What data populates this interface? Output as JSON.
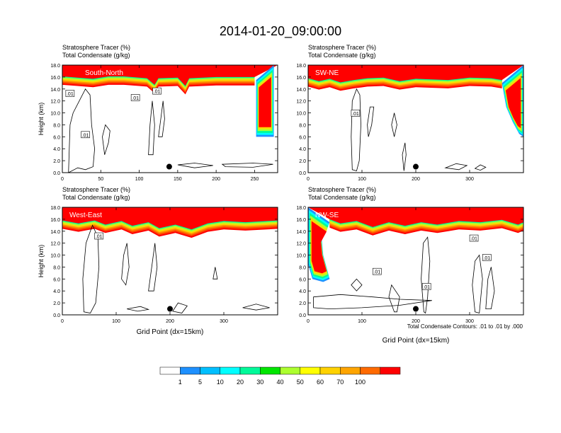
{
  "title": "2014-01-20_09:00:00",
  "footnote": "Total Condensate Contours: .01 to .01 by .000",
  "colorbar": {
    "colors": [
      "#ffffff",
      "#1e90ff",
      "#00bfff",
      "#00ffff",
      "#00fa9a",
      "#00e600",
      "#adff2f",
      "#ffff00",
      "#ffd200",
      "#ffa500",
      "#ff6a00",
      "#ff0000"
    ],
    "labels": [
      "1",
      "5",
      "10",
      "20",
      "30",
      "40",
      "50",
      "60",
      "70",
      "100"
    ]
  },
  "colors": {
    "layer": [
      "#ff0000",
      "#ff4500",
      "#ff8c00",
      "#ffd700",
      "#adff2f",
      "#00fa9a",
      "#00ffff",
      "#1e90ff"
    ],
    "contour": "#000000"
  },
  "chart_data": [
    {
      "type": "contour",
      "label": "South-North",
      "header_line1": "Stratosphere Tracer   (%)",
      "header_line2": "Total Condensate   (g/kg)",
      "ylabel": "Height (km)",
      "xlabel": "",
      "xlim": [
        0,
        280
      ],
      "ylim": [
        0,
        18
      ],
      "xticks": [
        "0",
        "50",
        "100",
        "150",
        "200",
        "250"
      ],
      "yticks": [
        "0.0",
        "2.0",
        "4.0",
        "6.0",
        "8.0",
        "10.0",
        "12.0",
        "14.0",
        "16.0",
        "18.0"
      ],
      "contour_labels": [
        ".01",
        ".01",
        ".01",
        ".01"
      ],
      "tropopause": [
        [
          0,
          15.6
        ],
        [
          20,
          15.4
        ],
        [
          40,
          15.2
        ],
        [
          60,
          15.6
        ],
        [
          80,
          15.6
        ],
        [
          100,
          15.4
        ],
        [
          110,
          15.3
        ],
        [
          120,
          14.2
        ],
        [
          125,
          15.3
        ],
        [
          150,
          15.4
        ],
        [
          160,
          14.0
        ],
        [
          165,
          15.3
        ],
        [
          200,
          15.5
        ],
        [
          250,
          15.5
        ]
      ],
      "intrusion": [
        [
          252,
          15.5
        ],
        [
          252,
          6.0
        ],
        [
          275,
          6.0
        ],
        [
          275,
          18.0
        ]
      ],
      "contours": [
        [
          [
            8,
            0
          ],
          [
            10,
            8
          ],
          [
            14,
            10
          ],
          [
            22,
            12
          ],
          [
            30,
            14
          ],
          [
            36,
            13
          ],
          [
            38,
            8
          ],
          [
            42,
            4
          ],
          [
            40,
            1
          ],
          [
            30,
            0.5
          ],
          [
            20,
            0.8
          ]
        ],
        [
          [
            55,
            3
          ],
          [
            60,
            5
          ],
          [
            62,
            7
          ],
          [
            56,
            8
          ],
          [
            52,
            6
          ]
        ],
        [
          [
            112,
            3
          ],
          [
            114,
            8
          ],
          [
            117,
            12
          ],
          [
            120,
            8
          ],
          [
            118,
            3
          ]
        ],
        [
          [
            125,
            6
          ],
          [
            128,
            9
          ],
          [
            131,
            12
          ],
          [
            133,
            9
          ],
          [
            130,
            6
          ]
        ],
        [
          [
            150,
            1.3
          ],
          [
            172,
            1.6
          ],
          [
            196,
            1.2
          ],
          [
            172,
            0.8
          ]
        ],
        [
          [
            208,
            1.4
          ],
          [
            248,
            1.6
          ],
          [
            274,
            1.4
          ],
          [
            248,
            0.9
          ],
          [
            212,
            1.0
          ]
        ]
      ],
      "marker": {
        "x": 139,
        "y": 1.0
      }
    },
    {
      "type": "contour",
      "label": "SW-NE",
      "header_line1": "Stratosphere Tracer   (%)",
      "header_line2": "Total Condensate   (g/kg)",
      "ylabel": "",
      "xlabel": "",
      "xlim": [
        0,
        400
      ],
      "ylim": [
        0,
        18
      ],
      "xticks": [
        "0",
        "100",
        "200",
        "300"
      ],
      "yticks": [
        "0.0",
        "2.0",
        "4.0",
        "6.0",
        "8.0",
        "10.0",
        "12.0",
        "14.0",
        "16.0",
        "18.0"
      ],
      "contour_labels": [
        ".01"
      ],
      "tropopause": [
        [
          0,
          15.3
        ],
        [
          20,
          14.8
        ],
        [
          40,
          15.2
        ],
        [
          60,
          14.6
        ],
        [
          85,
          15.0
        ],
        [
          110,
          15.3
        ],
        [
          140,
          15.4
        ],
        [
          170,
          14.8
        ],
        [
          200,
          15.2
        ],
        [
          260,
          15.0
        ],
        [
          300,
          15.4
        ],
        [
          340,
          15.3
        ],
        [
          360,
          15.0
        ]
      ],
      "intrusion": [
        [
          360,
          15.0
        ],
        [
          368,
          11.0
        ],
        [
          380,
          8.5
        ],
        [
          392,
          6.5
        ],
        [
          400,
          6.0
        ],
        [
          400,
          18.0
        ]
      ],
      "contours": [
        [
          [
            82,
            0.5
          ],
          [
            80,
            6
          ],
          [
            82,
            12
          ],
          [
            90,
            14
          ],
          [
            96,
            13
          ],
          [
            98,
            8
          ],
          [
            95,
            2
          ],
          [
            90,
            0.3
          ]
        ],
        [
          [
            112,
            6
          ],
          [
            118,
            8
          ],
          [
            122,
            11
          ],
          [
            115,
            11
          ],
          [
            110,
            8
          ]
        ],
        [
          [
            155,
            8
          ],
          [
            160,
            10
          ],
          [
            165,
            8
          ],
          [
            160,
            6
          ]
        ],
        [
          [
            178,
            0.3
          ],
          [
            182,
            3
          ],
          [
            180,
            5
          ],
          [
            175,
            3
          ]
        ],
        [
          [
            255,
            0.8
          ],
          [
            275,
            1.5
          ],
          [
            295,
            1.2
          ],
          [
            280,
            0.5
          ]
        ],
        [
          [
            310,
            0.7
          ],
          [
            320,
            1.3
          ],
          [
            330,
            0.9
          ],
          [
            320,
            0.4
          ]
        ]
      ],
      "marker": {
        "x": 200,
        "y": 1.0
      }
    },
    {
      "type": "contour",
      "label": "West-East",
      "header_line1": "Stratosphere Tracer   (%)",
      "header_line2": "Total Condensate   (g/kg)",
      "ylabel": "Height (km)",
      "xlabel": "Grid Point (dx=15km)",
      "xlim": [
        0,
        400
      ],
      "ylim": [
        0,
        18
      ],
      "xticks": [
        "0",
        "100",
        "200",
        "300"
      ],
      "yticks": [
        "0.0",
        "2.0",
        "4.0",
        "6.0",
        "8.0",
        "10.0",
        "12.0",
        "14.0",
        "16.0",
        "18.0"
      ],
      "contour_labels": [
        ".01"
      ],
      "tropopause": [
        [
          0,
          15.3
        ],
        [
          30,
          14.8
        ],
        [
          60,
          15.3
        ],
        [
          80,
          14.6
        ],
        [
          110,
          15.2
        ],
        [
          130,
          14.4
        ],
        [
          160,
          15.0
        ],
        [
          180,
          14.0
        ],
        [
          210,
          14.6
        ],
        [
          240,
          13.8
        ],
        [
          270,
          14.8
        ],
        [
          300,
          15.2
        ],
        [
          340,
          15.0
        ],
        [
          400,
          15.3
        ]
      ],
      "intrusion": [],
      "contours": [
        [
          [
            40,
            0.5
          ],
          [
            38,
            6
          ],
          [
            44,
            12
          ],
          [
            56,
            15
          ],
          [
            66,
            13
          ],
          [
            68,
            8
          ],
          [
            62,
            2
          ],
          [
            52,
            0.3
          ]
        ],
        [
          [
            110,
            6
          ],
          [
            114,
            10
          ],
          [
            120,
            12
          ],
          [
            124,
            8
          ],
          [
            118,
            5
          ]
        ],
        [
          [
            160,
            4
          ],
          [
            166,
            8
          ],
          [
            172,
            12
          ],
          [
            176,
            8
          ],
          [
            170,
            4
          ]
        ],
        [
          [
            205,
            0.6
          ],
          [
            215,
            2
          ],
          [
            232,
            1.5
          ],
          [
            222,
            0.3
          ]
        ],
        [
          [
            280,
            6
          ],
          [
            284,
            8
          ],
          [
            288,
            6
          ]
        ],
        [
          [
            120,
            1
          ],
          [
            145,
            1.4
          ],
          [
            160,
            0.9
          ],
          [
            140,
            0.6
          ]
        ],
        [
          [
            335,
            1.2
          ],
          [
            360,
            1.8
          ],
          [
            385,
            1.2
          ],
          [
            360,
            0.8
          ]
        ]
      ],
      "marker": {
        "x": 200,
        "y": 1.0
      }
    },
    {
      "type": "contour",
      "label": "NW-SE",
      "header_line1": "Stratosphere Tracer   (%)",
      "header_line2": "Total Condensate   (g/kg)",
      "ylabel": "",
      "xlabel": "Grid Point (dx=15km)",
      "xlim": [
        0,
        400
      ],
      "ylim": [
        0,
        18
      ],
      "xticks": [
        "0",
        "100",
        "200",
        "300"
      ],
      "yticks": [
        "0.0",
        "2.0",
        "4.0",
        "6.0",
        "8.0",
        "10.0",
        "12.0",
        "14.0",
        "16.0",
        "18.0"
      ],
      "contour_labels": [
        ".01",
        ".01",
        ".01",
        ".01"
      ],
      "tropopause": [
        [
          40,
          15.5
        ],
        [
          60,
          14.8
        ],
        [
          90,
          15.2
        ],
        [
          120,
          14.2
        ],
        [
          150,
          15.0
        ],
        [
          180,
          14.4
        ],
        [
          210,
          15.0
        ],
        [
          240,
          14.6
        ],
        [
          280,
          15.2
        ],
        [
          320,
          15.0
        ],
        [
          360,
          15.4
        ],
        [
          390,
          14.6
        ],
        [
          400,
          15.0
        ]
      ],
      "intrusion": [
        [
          0,
          18.0
        ],
        [
          0,
          8.5
        ],
        [
          8,
          6.0
        ],
        [
          28,
          5.5
        ],
        [
          40,
          6.0
        ],
        [
          28,
          10.0
        ],
        [
          25,
          13.0
        ],
        [
          40,
          15.5
        ]
      ],
      "contours": [
        [
          [
            160,
            0.5
          ],
          [
            150,
            3
          ],
          [
            155,
            5
          ],
          [
            170,
            3
          ],
          [
            165,
            0.5
          ]
        ],
        [
          [
            215,
            0.5
          ],
          [
            210,
            6
          ],
          [
            214,
            12
          ],
          [
            222,
            13
          ],
          [
            226,
            9
          ],
          [
            222,
            3
          ],
          [
            218,
            0.3
          ]
        ],
        [
          [
            310,
            0.5
          ],
          [
            305,
            5
          ],
          [
            310,
            9
          ],
          [
            318,
            10
          ],
          [
            324,
            6
          ],
          [
            318,
            0.3
          ]
        ],
        [
          [
            330,
            1
          ],
          [
            334,
            6
          ],
          [
            340,
            8
          ],
          [
            346,
            4
          ],
          [
            340,
            1
          ]
        ],
        [
          [
            10,
            3
          ],
          [
            60,
            3.4
          ],
          [
            120,
            3.0
          ],
          [
            170,
            2.6
          ],
          [
            230,
            2.4
          ],
          [
            170,
            1.6
          ],
          [
            100,
            1.2
          ],
          [
            40,
            1.0
          ],
          [
            10,
            1.2
          ]
        ],
        [
          [
            80,
            5
          ],
          [
            90,
            6
          ],
          [
            100,
            5
          ],
          [
            90,
            4
          ]
        ]
      ],
      "marker": {
        "x": 200,
        "y": 1.0
      }
    }
  ]
}
